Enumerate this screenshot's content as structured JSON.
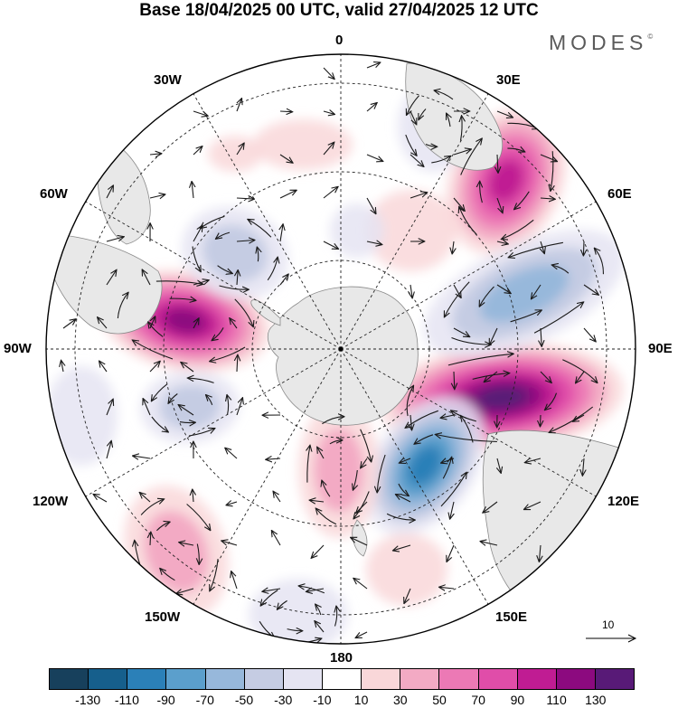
{
  "title": "Base 18/04/2025 00 UTC, valid 27/04/2025 12 UTC",
  "brand": {
    "name": "MODES",
    "mark": "©"
  },
  "map": {
    "projection": "south polar stereographic",
    "longitude_labels": {
      "n": "0",
      "ne": "30E",
      "ene": "60E",
      "e": "90E",
      "ese": "120E",
      "se": "150E",
      "s": "180",
      "sw": "150W",
      "wsw": "120W",
      "w": "90W",
      "wnw": "60W",
      "nw": "30W"
    },
    "colors": {
      "land": "#e8e8e8",
      "land_edge": "#8a8a8a",
      "graticule": "#222222",
      "vector": "#1a1a1a"
    }
  },
  "reference_vector": {
    "label": "10"
  },
  "colorbar": {
    "colors": [
      "#17405c",
      "#165f8c",
      "#2b80b8",
      "#5b9fcc",
      "#97b8db",
      "#c5cce3",
      "#e5e4f2",
      "#ffffff",
      "#f9d7d9",
      "#f3aac4",
      "#ec79b5",
      "#e04da9",
      "#c01c93",
      "#8c0a7f",
      "#581a77"
    ],
    "tick_labels": [
      "-130",
      "-110",
      "-90",
      "-70",
      "-50",
      "-30",
      "-10",
      "10",
      "30",
      "50",
      "70",
      "90",
      "110",
      "130"
    ]
  }
}
